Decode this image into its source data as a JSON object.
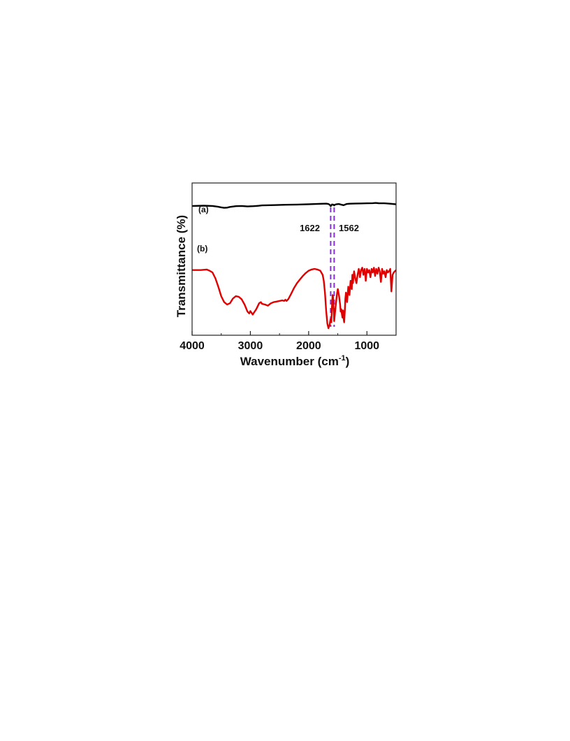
{
  "chart_data": {
    "type": "line",
    "title": "",
    "xlabel": "Wavenumber (cm",
    "xlabel_sup": "-1",
    "xlabel_close": ")",
    "ylabel": "Transmittance (%)",
    "xlim": [
      4000,
      500
    ],
    "x_reversed": true,
    "ylim": [
      0,
      100
    ],
    "y_ticks_shown": false,
    "grid": false,
    "x_ticks": [
      {
        "value": 4000,
        "label": "4000"
      },
      {
        "value": 3000,
        "label": "3000"
      },
      {
        "value": 2000,
        "label": "2000"
      },
      {
        "value": 1000,
        "label": "1000"
      }
    ],
    "reference_lines": [
      {
        "x": 1622,
        "color": "#8a2be2",
        "style": "dashed"
      },
      {
        "x": 1562,
        "color": "#8a2be2",
        "style": "dashed"
      }
    ],
    "annotations": [
      {
        "text": "1622",
        "x": 1622
      },
      {
        "text": "1562",
        "x": 1562
      }
    ],
    "series": [
      {
        "name": "(a)",
        "color": "#000000",
        "x": [
          4000,
          3800,
          3650,
          3560,
          3500,
          3450,
          3400,
          3350,
          3250,
          3150,
          3050,
          2950,
          2900,
          2850,
          2800,
          2600,
          2400,
          2200,
          2000,
          1800,
          1700,
          1660,
          1640,
          1622,
          1610,
          1600,
          1580,
          1562,
          1550,
          1520,
          1480,
          1450,
          1420,
          1400,
          1380,
          1350,
          1300,
          1200,
          1100,
          1000,
          900,
          850,
          800,
          700,
          600,
          500
        ],
        "y": [
          74.5,
          75.0,
          74.5,
          73.0,
          71.5,
          70.5,
          71.0,
          72.5,
          74.0,
          74.5,
          73.5,
          74.0,
          74.5,
          74.8,
          75.5,
          76.2,
          76.8,
          77.3,
          78.0,
          78.8,
          79.2,
          78.5,
          77.0,
          74.0,
          75.5,
          77.5,
          77.2,
          75.5,
          77.0,
          78.0,
          78.5,
          77.5,
          76.5,
          76.0,
          77.0,
          78.5,
          79.0,
          79.4,
          79.6,
          79.8,
          80.2,
          80.5,
          80.0,
          79.8,
          79.0,
          77.8
        ]
      },
      {
        "name": "(b)",
        "color": "#e00000",
        "x": [
          4000,
          3850,
          3750,
          3700,
          3650,
          3600,
          3550,
          3500,
          3450,
          3400,
          3350,
          3300,
          3250,
          3200,
          3150,
          3100,
          3050,
          3020,
          3000,
          2980,
          2960,
          2940,
          2900,
          2870,
          2850,
          2820,
          2800,
          2750,
          2700,
          2650,
          2600,
          2550,
          2500,
          2450,
          2420,
          2400,
          2380,
          2350,
          2300,
          2250,
          2200,
          2150,
          2100,
          2050,
          2000,
          1950,
          1900,
          1850,
          1800,
          1760,
          1740,
          1720,
          1700,
          1680,
          1660,
          1640,
          1630,
          1622,
          1610,
          1600,
          1590,
          1580,
          1570,
          1562,
          1550,
          1530,
          1510,
          1500,
          1480,
          1460,
          1450,
          1440,
          1430,
          1420,
          1410,
          1400,
          1390,
          1380,
          1370,
          1360,
          1340,
          1320,
          1300,
          1280,
          1260,
          1250,
          1240,
          1220,
          1200,
          1180,
          1160,
          1140,
          1130,
          1120,
          1100,
          1080,
          1060,
          1040,
          1030,
          1020,
          1000,
          980,
          960,
          940,
          920,
          900,
          880,
          860,
          840,
          820,
          800,
          780,
          760,
          740,
          720,
          700,
          680,
          660,
          640,
          620,
          600,
          580,
          560,
          540,
          520,
          500
        ],
        "y": [
          49.0,
          49.0,
          49.5,
          48.5,
          47.0,
          42.0,
          35.0,
          27.0,
          22.0,
          20.0,
          21.0,
          25.0,
          27.0,
          26.5,
          24.5,
          20.0,
          14.0,
          12.5,
          14.5,
          13.0,
          11.5,
          13.0,
          16.0,
          19.0,
          21.0,
          22.0,
          20.5,
          20.0,
          19.0,
          21.0,
          22.0,
          22.5,
          23.0,
          23.5,
          23.0,
          24.0,
          23.0,
          24.5,
          29.0,
          34.0,
          38.0,
          41.0,
          44.0,
          46.5,
          48.5,
          49.5,
          50.0,
          49.5,
          48.5,
          45.0,
          40.0,
          30.0,
          15.0,
          4.0,
          0.0,
          3.0,
          6.0,
          8.0,
          5.0,
          18.0,
          28.0,
          26.0,
          15.0,
          6.0,
          12.0,
          22.0,
          30.0,
          33.0,
          28.0,
          20.0,
          14.0,
          16.0,
          12.0,
          9.0,
          15.0,
          8.0,
          5.0,
          14.0,
          25.0,
          30.0,
          22.0,
          35.0,
          28.0,
          40.0,
          33.0,
          45.0,
          38.0,
          48.0,
          42.0,
          38.0,
          45.0,
          50.0,
          47.0,
          43.0,
          49.0,
          51.0,
          45.0,
          50.0,
          46.0,
          40.0,
          50.0,
          47.0,
          49.0,
          43.0,
          50.0,
          47.0,
          51.0,
          44.0,
          50.0,
          46.0,
          51.0,
          48.0,
          39.0,
          50.0,
          46.0,
          48.0,
          43.0,
          49.0,
          47.0,
          48.0,
          50.0,
          31.0,
          45.0,
          47.0,
          48.0,
          49.0
        ]
      }
    ]
  }
}
